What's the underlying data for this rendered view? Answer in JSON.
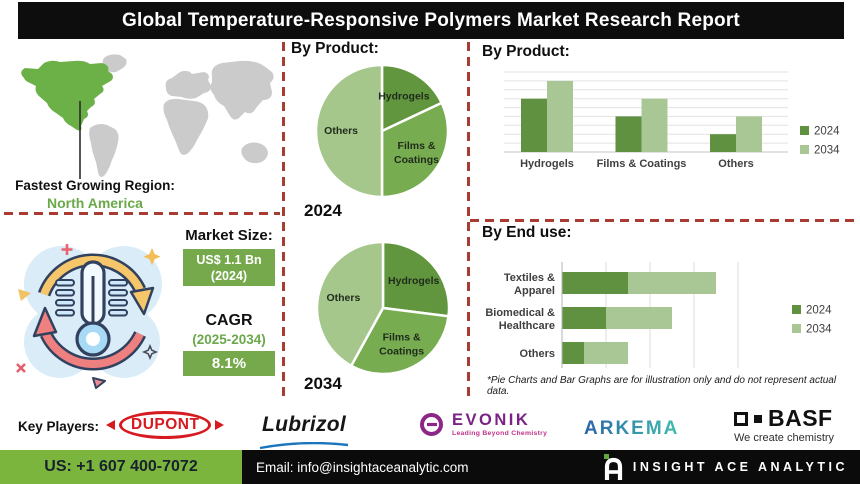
{
  "title": "Global Temperature-Responsive Polymers Market Research Report",
  "region": {
    "label": "Fastest Growing Region:",
    "value": "North America"
  },
  "market": {
    "size_label": "Market Size:",
    "size_value": "US$ 1.1 Bn",
    "size_year": "(2024)",
    "cagr_label": "CAGR",
    "cagr_period": "(2025-2034)",
    "cagr_value": "8.1%"
  },
  "chart_data": [
    {
      "type": "pie",
      "title": "By Product:",
      "year_label": "2024",
      "slices": [
        {
          "label": "Hydrogels",
          "value": 18,
          "color": "#61963F"
        },
        {
          "label": "Films & Coatings",
          "label_lines": [
            "Films &",
            "Coatings"
          ],
          "value": 32,
          "color": "#77AC51"
        },
        {
          "label": "Others",
          "value": 50,
          "color": "#A6C78C"
        }
      ]
    },
    {
      "type": "pie",
      "year_label": "2034",
      "slices": [
        {
          "label": "Hydrogels",
          "value": 27,
          "color": "#61963F"
        },
        {
          "label": "Films & Coatings",
          "label_lines": [
            "Films &",
            "Coatings"
          ],
          "value": 31,
          "color": "#77AC51"
        },
        {
          "label": "Others",
          "value": 42,
          "color": "#A6C78C"
        }
      ]
    },
    {
      "type": "bar",
      "title": "By Product:",
      "categories": [
        "Hydrogels",
        "Films & Coatings",
        "Others"
      ],
      "series": [
        {
          "name": "2024",
          "color": "#5F9140",
          "values": [
            60,
            40,
            20
          ]
        },
        {
          "name": "2034",
          "color": "#A9C795",
          "values": [
            80,
            60,
            40
          ]
        }
      ],
      "ylim": [
        0,
        90
      ],
      "grid": true,
      "legend_position": "right"
    },
    {
      "type": "bar-horizontal-stacked",
      "title": "By End use:",
      "categories": [
        "Textiles & Apparel",
        "Biomedical & Healthcare",
        "Others"
      ],
      "category_lines": [
        [
          "Textiles &",
          "Apparel"
        ],
        [
          "Biomedical &",
          "Healthcare"
        ],
        [
          "Others"
        ]
      ],
      "series": [
        {
          "name": "2024",
          "color": "#5F9140",
          "values": [
            1.5,
            1.0,
            0.5
          ]
        },
        {
          "name": "2034",
          "color": "#A9C795",
          "values": [
            2.0,
            1.5,
            1.0
          ]
        }
      ],
      "xlim": [
        0,
        4
      ],
      "grid": true,
      "legend_position": "right"
    }
  ],
  "disclaimer": "*Pie Charts and Bar Graphs are for illustration only and do not represent actual data.",
  "key_players": {
    "label": "Key Players:",
    "dupont": "DUPONT",
    "lubrizol": "Lubrizol",
    "evonik": "EVONIK",
    "evonik_tagline": "Leading Beyond Chemistry",
    "arkema": "ARKEMA",
    "basf": "BASF",
    "basf_tagline": "We create chemistry"
  },
  "footer": {
    "phone": "US: +1 607 400-7072",
    "email": "Email: info@insightaceanalytic.com",
    "brand": "INSIGHT ACE ANALYTIC"
  },
  "colors": {
    "dark_green": "#5F9140",
    "mid_green": "#77AC51",
    "light_green": "#A6C78C",
    "box_green": "#76A94C",
    "map_green": "#6CB148",
    "footer_green": "#7CB53E",
    "dashed_red": "#A93B32"
  }
}
